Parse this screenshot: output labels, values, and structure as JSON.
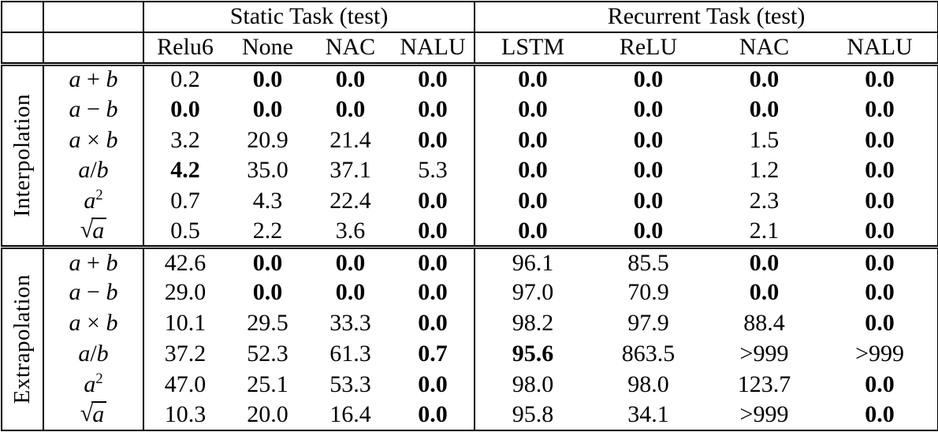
{
  "colors": {
    "text": "#000000",
    "background": "#ffffff",
    "rule": "#000000"
  },
  "table": {
    "col_groups": [
      {
        "label": "Static Task (test)",
        "columns": [
          "Relu6",
          "None",
          "NAC",
          "NALU"
        ]
      },
      {
        "label": "Recurrent Task (test)",
        "columns": [
          "LSTM",
          "ReLU",
          "NAC",
          "NALU"
        ]
      }
    ],
    "row_groups": [
      {
        "label": "Interpolation",
        "rows": [
          {
            "label": "a + b",
            "values": [
              "0.2",
              "0.0",
              "0.0",
              "0.0",
              "0.0",
              "0.0",
              "0.0",
              "0.0"
            ],
            "bold": [
              0,
              1,
              1,
              1,
              1,
              1,
              1,
              1
            ]
          },
          {
            "label": "a − b",
            "values": [
              "0.0",
              "0.0",
              "0.0",
              "0.0",
              "0.0",
              "0.0",
              "0.0",
              "0.0"
            ],
            "bold": [
              1,
              1,
              1,
              1,
              1,
              1,
              1,
              1
            ]
          },
          {
            "label": "a × b",
            "values": [
              "3.2",
              "20.9",
              "21.4",
              "0.0",
              "0.0",
              "0.0",
              "1.5",
              "0.0"
            ],
            "bold": [
              0,
              0,
              0,
              1,
              1,
              1,
              0,
              1
            ]
          },
          {
            "label": "a/b",
            "values": [
              "4.2",
              "35.0",
              "37.1",
              "5.3",
              "0.0",
              "0.0",
              "1.2",
              "0.0"
            ],
            "bold": [
              1,
              0,
              0,
              0,
              1,
              1,
              0,
              1
            ]
          },
          {
            "label": "a^2",
            "values": [
              "0.7",
              "4.3",
              "22.4",
              "0.0",
              "0.0",
              "0.0",
              "2.3",
              "0.0"
            ],
            "bold": [
              0,
              0,
              0,
              1,
              1,
              1,
              0,
              1
            ]
          },
          {
            "label": "√a",
            "values": [
              "0.5",
              "2.2",
              "3.6",
              "0.0",
              "0.0",
              "0.0",
              "2.1",
              "0.0"
            ],
            "bold": [
              0,
              0,
              0,
              1,
              1,
              1,
              0,
              1
            ]
          }
        ]
      },
      {
        "label": "Extrapolation",
        "rows": [
          {
            "label": "a + b",
            "values": [
              "42.6",
              "0.0",
              "0.0",
              "0.0",
              "96.1",
              "85.5",
              "0.0",
              "0.0"
            ],
            "bold": [
              0,
              1,
              1,
              1,
              0,
              0,
              1,
              1
            ]
          },
          {
            "label": "a − b",
            "values": [
              "29.0",
              "0.0",
              "0.0",
              "0.0",
              "97.0",
              "70.9",
              "0.0",
              "0.0"
            ],
            "bold": [
              0,
              1,
              1,
              1,
              0,
              0,
              1,
              1
            ]
          },
          {
            "label": "a × b",
            "values": [
              "10.1",
              "29.5",
              "33.3",
              "0.0",
              "98.2",
              "97.9",
              "88.4",
              "0.0"
            ],
            "bold": [
              0,
              0,
              0,
              1,
              0,
              0,
              0,
              1
            ]
          },
          {
            "label": "a/b",
            "values": [
              "37.2",
              "52.3",
              "61.3",
              "0.7",
              "95.6",
              "863.5",
              ">999",
              ">999"
            ],
            "bold": [
              0,
              0,
              0,
              1,
              1,
              0,
              0,
              0
            ]
          },
          {
            "label": "a^2",
            "values": [
              "47.0",
              "25.1",
              "53.3",
              "0.0",
              "98.0",
              "98.0",
              "123.7",
              "0.0"
            ],
            "bold": [
              0,
              0,
              0,
              1,
              0,
              0,
              0,
              1
            ]
          },
          {
            "label": "√a",
            "values": [
              "10.3",
              "20.0",
              "16.4",
              "0.0",
              "95.8",
              "34.1",
              ">999",
              "0.0"
            ],
            "bold": [
              0,
              0,
              0,
              1,
              0,
              0,
              0,
              1
            ]
          }
        ]
      }
    ]
  }
}
